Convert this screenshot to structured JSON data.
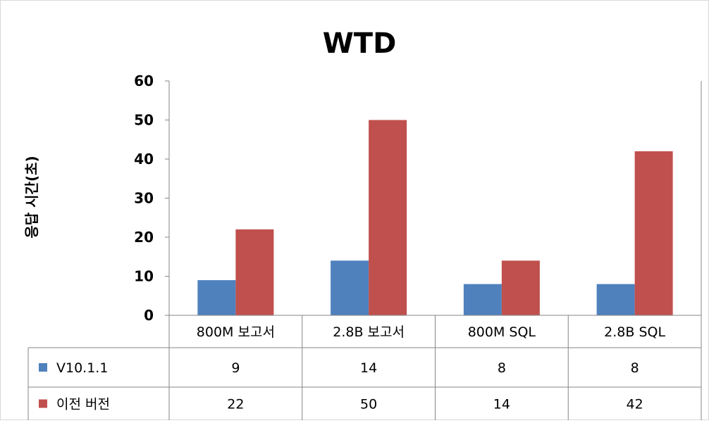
{
  "chart_data": {
    "type": "bar",
    "title": "WTD",
    "ylabel": "응답 시간(초)",
    "xlabel": "",
    "categories": [
      "800M 보고서",
      "2.8B 보고서",
      "800M SQL",
      "2.8B SQL"
    ],
    "series": [
      {
        "name": "V10.1.1",
        "values": [
          9,
          14,
          8,
          8
        ],
        "color": "#4f81bd"
      },
      {
        "name": "이전 버전",
        "values": [
          22,
          50,
          14,
          42
        ],
        "color": "#c0504d"
      }
    ],
    "ylim": [
      0,
      60
    ],
    "yticks": [
      0,
      10,
      20,
      30,
      40,
      50,
      60
    ],
    "grid": false,
    "legend": "data-table",
    "data_table": true
  }
}
